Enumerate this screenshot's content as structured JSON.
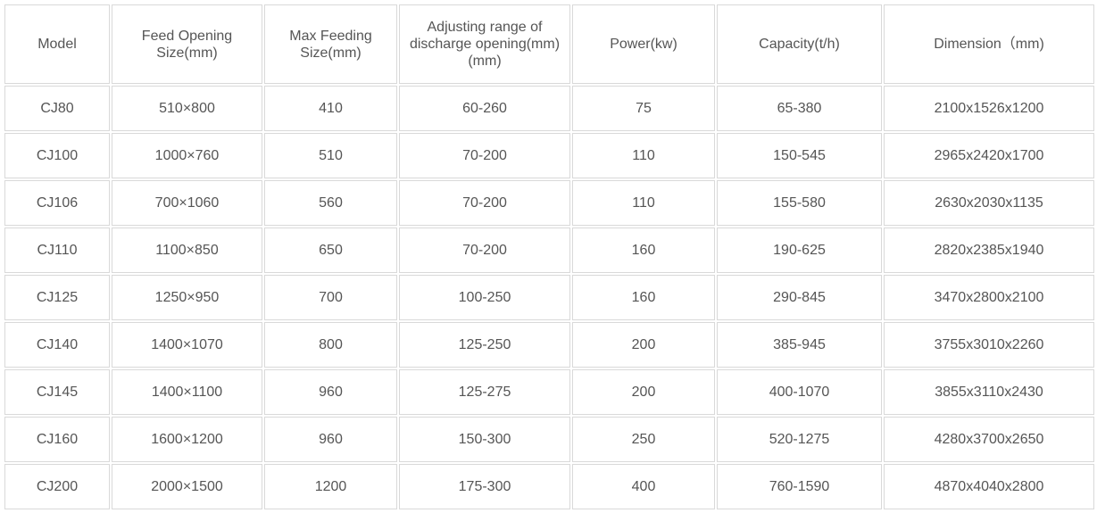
{
  "table": {
    "headers": [
      "Model",
      "Feed Opening Size(mm)",
      "Max Feeding Size(mm)",
      "Adjusting range of discharge opening(mm)(mm)",
      "Power(kw)",
      "Capacity(t/h)",
      "Dimension（mm)"
    ],
    "rows": [
      [
        "CJ80",
        "510×800",
        "410",
        "60-260",
        "75",
        "65-380",
        "2100x1526x1200"
      ],
      [
        "CJ100",
        "1000×760",
        "510",
        "70-200",
        "110",
        "150-545",
        "2965x2420x1700"
      ],
      [
        "CJ106",
        "700×1060",
        "560",
        "70-200",
        "110",
        "155-580",
        "2630x2030x1135"
      ],
      [
        "CJ110",
        "1100×850",
        "650",
        "70-200",
        "160",
        "190-625",
        "2820x2385x1940"
      ],
      [
        "CJ125",
        "1250×950",
        "700",
        "100-250",
        "160",
        "290-845",
        "3470x2800x2100"
      ],
      [
        "CJ140",
        "1400×1070",
        "800",
        "125-250",
        "200",
        "385-945",
        "3755x3010x2260"
      ],
      [
        "CJ145",
        "1400×1100",
        "960",
        "125-275",
        "200",
        "400-1070",
        "3855x3110x2430"
      ],
      [
        "CJ160",
        "1600×1200",
        "960",
        "150-300",
        "250",
        "520-1275",
        "4280x3700x2650"
      ],
      [
        "CJ200",
        "2000×1500",
        "1200",
        "175-300",
        "400",
        "760-1590",
        "4870x4040x2800"
      ]
    ]
  }
}
